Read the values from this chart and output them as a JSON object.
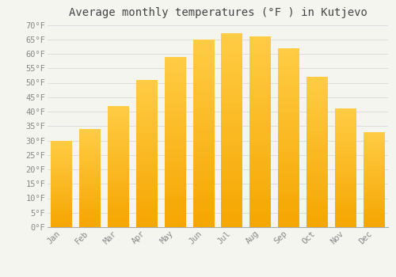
{
  "title": "Average monthly temperatures (°F ) in Kutjevo",
  "months": [
    "Jan",
    "Feb",
    "Mar",
    "Apr",
    "May",
    "Jun",
    "Jul",
    "Aug",
    "Sep",
    "Oct",
    "Nov",
    "Dec"
  ],
  "values": [
    30,
    34,
    42,
    51,
    59,
    65,
    67,
    66,
    62,
    52,
    41,
    33
  ],
  "bar_color_top": "#FDB92E",
  "bar_color_bottom": "#F5A800",
  "bar_edge_color": "none",
  "ylim": [
    0,
    70
  ],
  "background_color": "#F5F5F0",
  "plot_bg_color": "#F5F5F0",
  "grid_color": "#DDDDDD",
  "title_fontsize": 10,
  "tick_fontsize": 7.5,
  "title_color": "#444444",
  "tick_color": "#888888"
}
